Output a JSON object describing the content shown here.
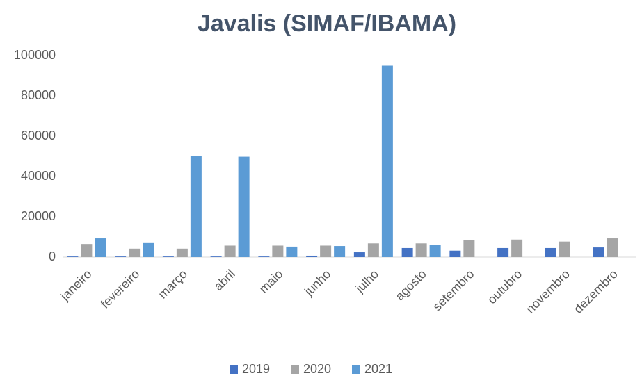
{
  "chart_data": {
    "type": "bar",
    "title": "Javalis (SIMAF/IBAMA)",
    "categories": [
      "janeiro",
      "fevereiro",
      "março",
      "abril",
      "maio",
      "junho",
      "julho",
      "agosto",
      "setembro",
      "outubro",
      "novembro",
      "dezembro"
    ],
    "series": [
      {
        "name": "2019",
        "color": "#4472c4",
        "values": [
          300,
          300,
          300,
          300,
          300,
          700,
          2400,
          4500,
          3200,
          4500,
          4500,
          4800
        ]
      },
      {
        "name": "2020",
        "color": "#a5a5a5",
        "values": [
          6500,
          4200,
          4200,
          5700,
          5700,
          5700,
          6800,
          6800,
          8300,
          8700,
          7700,
          9300
        ]
      },
      {
        "name": "2021",
        "color": "#5b9bd5",
        "values": [
          9300,
          7300,
          50000,
          49800,
          5200,
          5500,
          95000,
          6200,
          null,
          null,
          null,
          null
        ]
      }
    ],
    "ylim": [
      0,
      100000
    ],
    "yticks": [
      0,
      20000,
      40000,
      60000,
      80000,
      100000
    ],
    "grid": false,
    "legend": "bottom"
  }
}
